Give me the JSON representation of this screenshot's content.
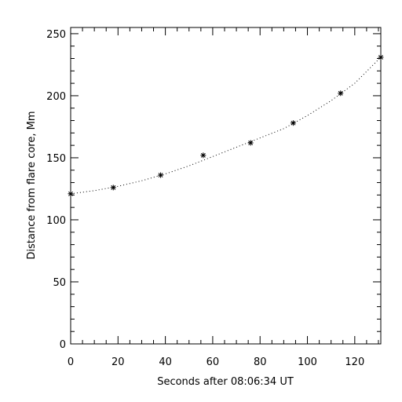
{
  "chart_data": {
    "type": "scatter",
    "xlabel": "Seconds after 08:06:34 UT",
    "ylabel": "Distance from flare core, Mm",
    "xlim": [
      0,
      131
    ],
    "ylim": [
      0,
      255
    ],
    "x_ticks": [
      "0",
      "20",
      "40",
      "60",
      "80",
      "100",
      "120"
    ],
    "y_ticks": [
      "0",
      "50",
      "100",
      "150",
      "200",
      "250"
    ],
    "x_tick_values": [
      0,
      20,
      40,
      60,
      80,
      100,
      120
    ],
    "y_tick_values": [
      0,
      50,
      100,
      150,
      200,
      250
    ],
    "grid": false,
    "series": [
      {
        "marker": "asterisk",
        "x": [
          0,
          18,
          38,
          56,
          76,
          94,
          114,
          131
        ],
        "y": [
          121,
          126,
          136,
          152,
          162,
          178,
          202,
          231
        ]
      }
    ],
    "fit_curve": {
      "style": "dotted",
      "x": [
        0,
        10,
        20,
        30,
        40,
        50,
        60,
        70,
        80,
        90,
        100,
        110,
        120,
        131
      ],
      "y": [
        121,
        123.5,
        127,
        131.5,
        137,
        143.5,
        151,
        158.5,
        166,
        173.5,
        184,
        196,
        210,
        231
      ]
    },
    "colors": {
      "foreground": "#000000",
      "background": "#ffffff"
    }
  }
}
